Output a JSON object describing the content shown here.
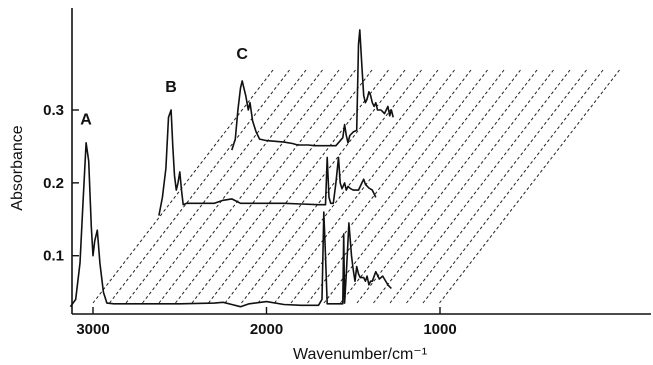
{
  "chart_data": {
    "type": "line",
    "title": "",
    "xlabel": "Wavenumber/cm⁻¹",
    "ylabel": "Absorbance",
    "xlim": [
      3150,
      1000
    ],
    "ylim": [
      0.02,
      0.44
    ],
    "x_ticks": [
      3000,
      2000,
      1000
    ],
    "y_ticks": [
      0.1,
      0.2,
      0.3
    ],
    "x_tick_labels": [
      "3000",
      "2000",
      "1000"
    ],
    "y_tick_labels": [
      "0.1",
      "0.2",
      "0.3"
    ],
    "grid": false,
    "legend": "none",
    "note": "Stacked (offset) IR absorbance spectra drawn in pseudo-3D with dashed depth lines; each trace shifted right and up.",
    "series": [
      {
        "name": "A",
        "offset_x_cm": 0,
        "points": [
          [
            3130,
            0.03
          ],
          [
            3100,
            0.04
          ],
          [
            3075,
            0.09
          ],
          [
            3058,
            0.17
          ],
          [
            3040,
            0.255
          ],
          [
            3025,
            0.23
          ],
          [
            3010,
            0.14
          ],
          [
            3000,
            0.1
          ],
          [
            2990,
            0.12
          ],
          [
            2975,
            0.135
          ],
          [
            2960,
            0.09
          ],
          [
            2940,
            0.05
          ],
          [
            2920,
            0.035
          ],
          [
            2880,
            0.034
          ],
          [
            2500,
            0.034
          ],
          [
            2300,
            0.035
          ],
          [
            2250,
            0.036
          ],
          [
            2200,
            0.033
          ],
          [
            2150,
            0.03
          ],
          [
            2100,
            0.034
          ],
          [
            2000,
            0.037
          ],
          [
            1900,
            0.033
          ],
          [
            1800,
            0.032
          ],
          [
            1700,
            0.032
          ],
          [
            1680,
            0.04
          ],
          [
            1670,
            0.16
          ],
          [
            1660,
            0.1
          ],
          [
            1650,
            0.034
          ],
          [
            1560,
            0.034
          ],
          [
            1555,
            0.13
          ],
          [
            1550,
            0.035
          ],
          [
            1540,
            0.075
          ],
          [
            1525,
            0.145
          ],
          [
            1510,
            0.1
          ],
          [
            1500,
            0.08
          ],
          [
            1490,
            0.065
          ],
          [
            1480,
            0.085
          ],
          [
            1470,
            0.075
          ],
          [
            1460,
            0.07
          ],
          [
            1450,
            0.07
          ],
          [
            1440,
            0.07
          ],
          [
            1430,
            0.065
          ],
          [
            1420,
            0.072
          ],
          [
            1410,
            0.06
          ],
          [
            1400,
            0.065
          ],
          [
            1390,
            0.065
          ],
          [
            1370,
            0.078
          ],
          [
            1350,
            0.068
          ],
          [
            1330,
            0.072
          ],
          [
            1300,
            0.06
          ],
          [
            1280,
            0.055
          ]
        ]
      },
      {
        "name": "B",
        "offset_x_cm": 0,
        "points": [
          [
            2620,
            0.155
          ],
          [
            2600,
            0.18
          ],
          [
            2580,
            0.22
          ],
          [
            2565,
            0.29
          ],
          [
            2550,
            0.3
          ],
          [
            2540,
            0.25
          ],
          [
            2530,
            0.21
          ],
          [
            2520,
            0.19
          ],
          [
            2510,
            0.2
          ],
          [
            2500,
            0.215
          ],
          [
            2490,
            0.19
          ],
          [
            2480,
            0.17
          ],
          [
            2460,
            0.172
          ],
          [
            2420,
            0.172
          ],
          [
            2300,
            0.172
          ],
          [
            2250,
            0.176
          ],
          [
            2200,
            0.178
          ],
          [
            2150,
            0.172
          ],
          [
            2000,
            0.172
          ],
          [
            1900,
            0.172
          ],
          [
            1800,
            0.171
          ],
          [
            1700,
            0.17
          ],
          [
            1660,
            0.17
          ],
          [
            1650,
            0.235
          ],
          [
            1640,
            0.18
          ],
          [
            1630,
            0.172
          ],
          [
            1615,
            0.172
          ],
          [
            1600,
            0.2
          ],
          [
            1585,
            0.235
          ],
          [
            1575,
            0.2
          ],
          [
            1565,
            0.192
          ],
          [
            1550,
            0.2
          ],
          [
            1540,
            0.19
          ],
          [
            1530,
            0.195
          ],
          [
            1515,
            0.192
          ],
          [
            1500,
            0.19
          ],
          [
            1470,
            0.19
          ],
          [
            1450,
            0.2
          ],
          [
            1440,
            0.205
          ],
          [
            1430,
            0.198
          ],
          [
            1410,
            0.193
          ],
          [
            1390,
            0.19
          ],
          [
            1370,
            0.18
          ]
        ]
      },
      {
        "name": "C",
        "offset_x_cm": 0,
        "points": [
          [
            2200,
            0.245
          ],
          [
            2180,
            0.26
          ],
          [
            2165,
            0.3
          ],
          [
            2150,
            0.33
          ],
          [
            2140,
            0.34
          ],
          [
            2130,
            0.33
          ],
          [
            2120,
            0.32
          ],
          [
            2105,
            0.3
          ],
          [
            2095,
            0.31
          ],
          [
            2080,
            0.285
          ],
          [
            2060,
            0.27
          ],
          [
            2040,
            0.26
          ],
          [
            2000,
            0.258
          ],
          [
            1900,
            0.256
          ],
          [
            1850,
            0.254
          ],
          [
            1820,
            0.252
          ],
          [
            1780,
            0.252
          ],
          [
            1760,
            0.252
          ],
          [
            1720,
            0.251
          ],
          [
            1600,
            0.251
          ],
          [
            1560,
            0.262
          ],
          [
            1550,
            0.28
          ],
          [
            1540,
            0.265
          ],
          [
            1530,
            0.255
          ],
          [
            1520,
            0.265
          ],
          [
            1500,
            0.27
          ],
          [
            1480,
            0.272
          ],
          [
            1470,
            0.39
          ],
          [
            1462,
            0.41
          ],
          [
            1450,
            0.36
          ],
          [
            1440,
            0.32
          ],
          [
            1430,
            0.31
          ],
          [
            1420,
            0.315
          ],
          [
            1410,
            0.325
          ],
          [
            1400,
            0.32
          ],
          [
            1390,
            0.31
          ],
          [
            1380,
            0.305
          ],
          [
            1370,
            0.31
          ],
          [
            1360,
            0.3
          ],
          [
            1340,
            0.3
          ],
          [
            1320,
            0.295
          ],
          [
            1300,
            0.305
          ],
          [
            1290,
            0.292
          ],
          [
            1280,
            0.3
          ],
          [
            1270,
            0.29
          ]
        ]
      }
    ],
    "peak_labels": [
      {
        "text": "A",
        "x": 3040,
        "y": 0.28
      },
      {
        "text": "B",
        "x": 2550,
        "y": 0.325
      },
      {
        "text": "C",
        "x": 2140,
        "y": 0.37
      }
    ]
  }
}
